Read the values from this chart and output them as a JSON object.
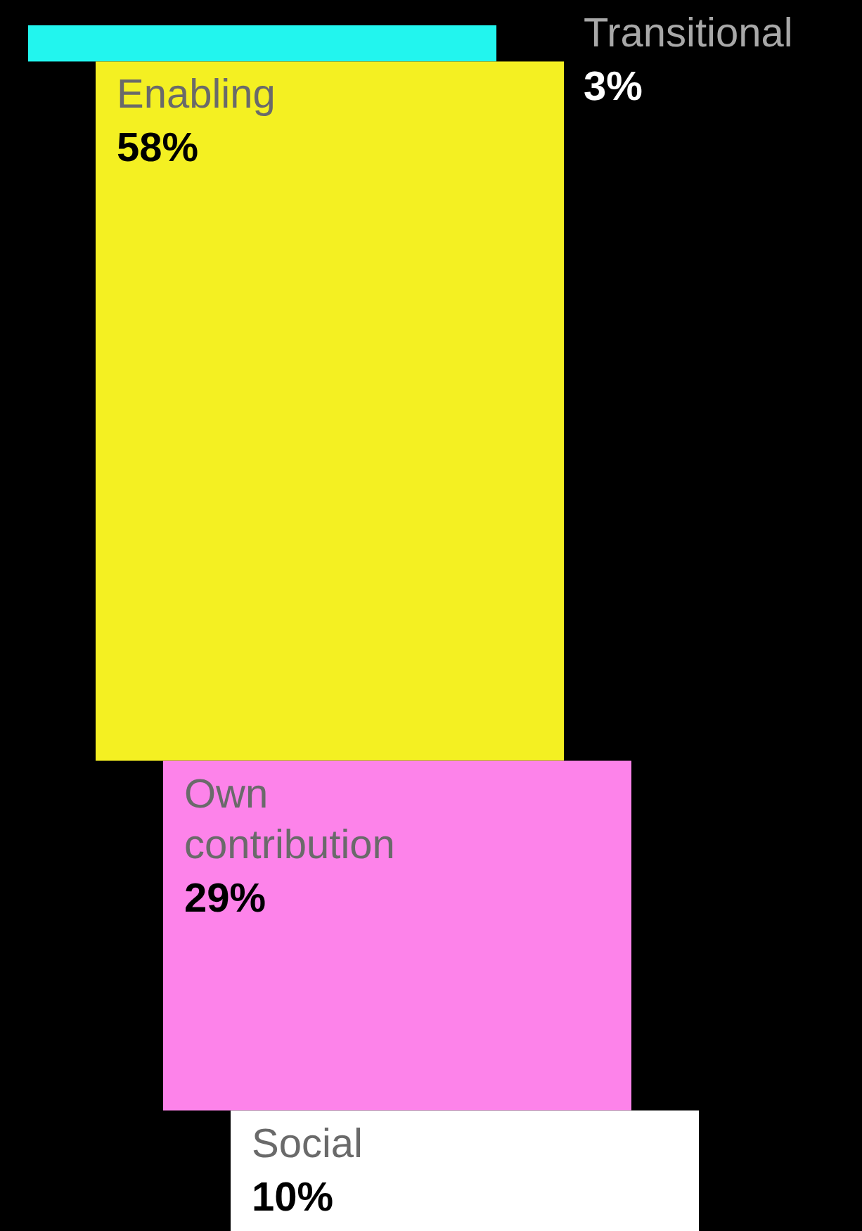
{
  "chart_data": {
    "type": "other",
    "categories": [
      "Transitional",
      "Enabling",
      "Own contribution",
      "Social"
    ],
    "values": [
      3,
      58,
      29,
      10
    ],
    "colors": [
      "#22f5ee",
      "#f4f022",
      "#fd83ea",
      "#ffffff"
    ],
    "value_labels": [
      "3%",
      "58%",
      "29%",
      "10%"
    ]
  }
}
